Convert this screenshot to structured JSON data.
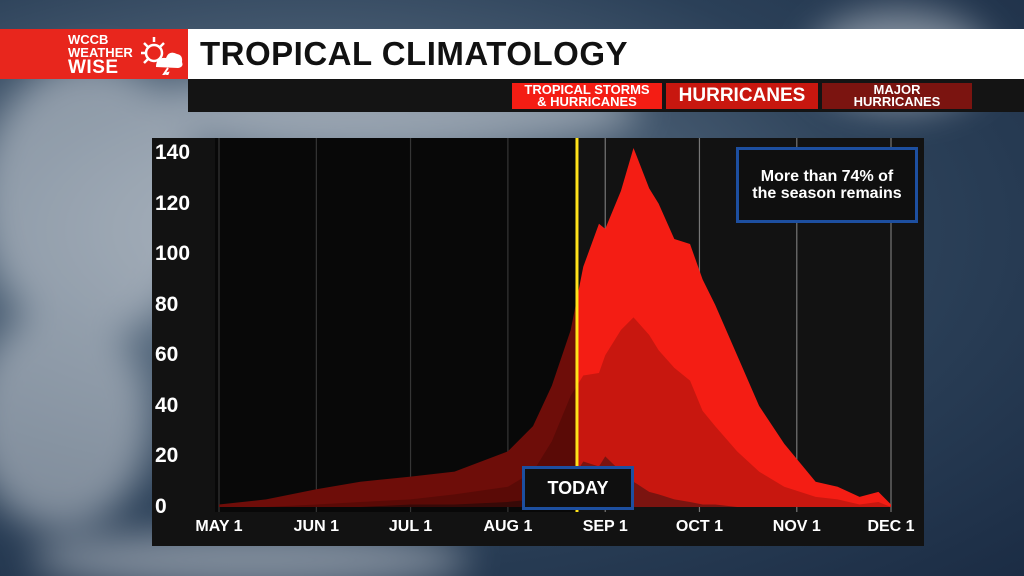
{
  "logo": {
    "line1": "WCCB",
    "line2": "WEATHER",
    "line3": "WISE"
  },
  "header": {
    "title": "TROPICAL CLIMATOLOGY"
  },
  "legend": {
    "tropical_storms": {
      "line1": "TROPICAL STORMS",
      "line2": "& HURRICANES",
      "color": "#f41d14"
    },
    "hurricanes": {
      "label": "HURRICANES",
      "color": "#c8170f"
    },
    "major": {
      "line1": "MAJOR",
      "line2": "HURRICANES",
      "color": "#7b1410"
    }
  },
  "callouts": {
    "today": "TODAY",
    "note": "More than 74% of the season remains"
  },
  "chart_data": {
    "type": "area",
    "title": "TROPICAL CLIMATOLOGY",
    "xlabel": "",
    "ylabel": "",
    "ylim": [
      0,
      140
    ],
    "yticks": [
      0,
      20,
      40,
      60,
      80,
      100,
      120,
      140
    ],
    "xticks": [
      "MAY 1",
      "JUN 1",
      "JUL 1",
      "AUG 1",
      "SEP 1",
      "OCT 1",
      "NOV 1",
      "DEC 1"
    ],
    "x_days": [
      0,
      15,
      31,
      45,
      61,
      75,
      92,
      100,
      106,
      112,
      116,
      121,
      123,
      128,
      132,
      137,
      140,
      145,
      150,
      154,
      158,
      165,
      172,
      180,
      190,
      197,
      204,
      210,
      214
    ],
    "today_day": 114,
    "grid": true,
    "series": [
      {
        "name": "TROPICAL STORMS & HURRICANES",
        "values": [
          1,
          3,
          7,
          10,
          12,
          14,
          22,
          32,
          48,
          70,
          95,
          112,
          110,
          125,
          142,
          126,
          120,
          106,
          104,
          90,
          80,
          60,
          40,
          25,
          10,
          8,
          4,
          6,
          1
        ],
        "color": "#f41d14"
      },
      {
        "name": "HURRICANES",
        "values": [
          0,
          0,
          1,
          2,
          3,
          5,
          8,
          14,
          26,
          44,
          52,
          53,
          60,
          70,
          75,
          68,
          62,
          55,
          50,
          38,
          32,
          22,
          14,
          8,
          4,
          3,
          1,
          2,
          0
        ],
        "color": "#c8170f"
      },
      {
        "name": "MAJOR HURRICANES",
        "values": [
          0,
          0,
          0,
          0,
          1,
          1,
          2,
          3,
          6,
          10,
          18,
          16,
          20,
          14,
          10,
          6,
          5,
          3,
          2,
          1,
          1,
          0,
          0,
          0,
          0,
          0,
          0,
          0,
          0
        ],
        "color": "#7b1410"
      }
    ]
  }
}
